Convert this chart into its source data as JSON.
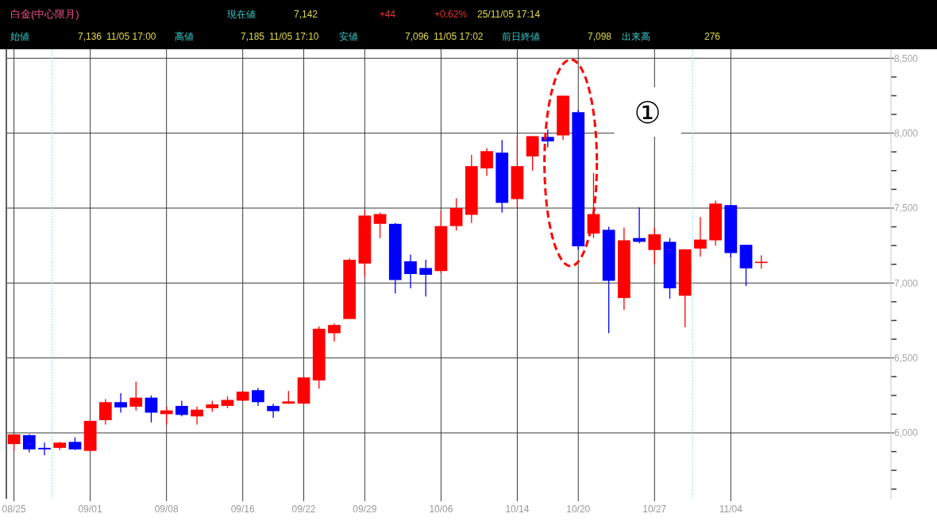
{
  "chart_data": {
    "type": "candlestick",
    "title": "白金(中心限月)",
    "annotations": [
      "現在値",
      "7,142",
      "+44",
      "+0.62%",
      "25/11/05 17:14",
      "始値",
      "7,136",
      "11/05 17:00",
      "高値",
      "7,185",
      "11/05 17:10",
      "安値",
      "7,096",
      "11/05 17:02",
      "前日終値",
      "7,098",
      "出来高",
      "276",
      "①"
    ],
    "categories": [
      "08/25",
      null,
      null,
      null,
      null,
      "09/01",
      null,
      null,
      null,
      null,
      "09/08",
      null,
      null,
      null,
      null,
      "09/16",
      null,
      null,
      null,
      "09/22",
      null,
      null,
      null,
      "09/29",
      null,
      null,
      null,
      null,
      "10/06",
      null,
      null,
      null,
      null,
      "10/14",
      null,
      null,
      null,
      "10/20",
      null,
      null,
      null,
      null,
      "10/27",
      null,
      null,
      null,
      null,
      "11/04",
      null,
      null,
      null,
      null,
      null,
      null,
      null,
      null,
      null,
      null
    ],
    "ohlc": [
      [
        5925,
        5990,
        5880,
        5990
      ],
      [
        5985,
        5990,
        5870,
        5890
      ],
      [
        5900,
        5935,
        5850,
        5890
      ],
      [
        5900,
        5940,
        5885,
        5935
      ],
      [
        5940,
        5970,
        5885,
        5890
      ],
      [
        5880,
        6080,
        5875,
        6080
      ],
      [
        6085,
        6225,
        6055,
        6205
      ],
      [
        6205,
        6265,
        6135,
        6170
      ],
      [
        6175,
        6340,
        6150,
        6235
      ],
      [
        6235,
        6250,
        6070,
        6135
      ],
      [
        6125,
        6175,
        6055,
        6150
      ],
      [
        6180,
        6215,
        6110,
        6120
      ],
      [
        6110,
        6175,
        6055,
        6155
      ],
      [
        6165,
        6215,
        6140,
        6190
      ],
      [
        6180,
        6245,
        6165,
        6220
      ],
      [
        6215,
        6280,
        6215,
        6275
      ],
      [
        6285,
        6300,
        6180,
        6205
      ],
      [
        6180,
        6195,
        6100,
        6145
      ],
      [
        6195,
        6280,
        6195,
        6210
      ],
      [
        6195,
        6375,
        6195,
        6370
      ],
      [
        6350,
        6710,
        6295,
        6695
      ],
      [
        6665,
        6730,
        6610,
        6720
      ],
      [
        6760,
        7165,
        6760,
        7155
      ],
      [
        7130,
        7490,
        7040,
        7450
      ],
      [
        7395,
        7470,
        7300,
        7460
      ],
      [
        7395,
        7400,
        6930,
        7020
      ],
      [
        7145,
        7190,
        6965,
        7060
      ],
      [
        7100,
        7155,
        6910,
        7055
      ],
      [
        7080,
        7485,
        7065,
        7380
      ],
      [
        7380,
        7565,
        7350,
        7500
      ],
      [
        7455,
        7855,
        7400,
        7780
      ],
      [
        7765,
        7900,
        7715,
        7880
      ],
      [
        7870,
        7955,
        7470,
        7535
      ],
      [
        7560,
        7980,
        7500,
        7780
      ],
      [
        7845,
        7980,
        7750,
        7980
      ],
      [
        7975,
        8025,
        7905,
        7945
      ],
      [
        7985,
        8250,
        7955,
        8250
      ],
      [
        8140,
        8155,
        7220,
        7245
      ],
      [
        7330,
        7735,
        7300,
        7460
      ],
      [
        7355,
        7375,
        6665,
        7015
      ],
      [
        6900,
        7370,
        6820,
        7285
      ],
      [
        7300,
        7505,
        7265,
        7275
      ],
      [
        7220,
        7370,
        7125,
        7325
      ],
      [
        7275,
        7300,
        6895,
        6965
      ],
      [
        6915,
        7225,
        6705,
        7225
      ],
      [
        7230,
        7440,
        7175,
        7290
      ],
      [
        7285,
        7550,
        7250,
        7530
      ],
      [
        7520,
        7520,
        7170,
        7200
      ],
      [
        7255,
        7255,
        6980,
        7098
      ],
      [
        7136,
        7185,
        7096,
        7142
      ],
      null,
      null,
      null,
      null,
      null,
      null,
      null,
      null
    ],
    "colors": [
      "#ff0000",
      "#0000ff",
      "#0000ff",
      "#ff0000",
      "#0000ff",
      "#ff0000",
      "#ff0000",
      "#0000ff",
      "#ff0000",
      "#0000ff",
      "#ff0000",
      "#0000ff",
      "#ff0000",
      "#ff0000",
      "#ff0000",
      "#ff0000",
      "#0000ff",
      "#0000ff",
      "#ff0000",
      "#ff0000",
      "#ff0000",
      "#ff0000",
      "#ff0000",
      "#ff0000",
      "#ff0000",
      "#0000ff",
      "#0000ff",
      "#0000ff",
      "#ff0000",
      "#ff0000",
      "#ff0000",
      "#ff0000",
      "#0000ff",
      "#ff0000",
      "#ff0000",
      "#0000ff",
      "#ff0000",
      "#0000ff",
      "#ff0000",
      "#0000ff",
      "#ff0000",
      "#0000ff",
      "#ff0000",
      "#0000ff",
      "#ff0000",
      "#ff0000",
      "#ff0000",
      "#0000ff",
      "#0000ff",
      "#ff0000",
      null,
      null,
      null,
      null,
      null,
      null,
      null,
      null
    ],
    "ylim": [
      5560,
      8560
    ],
    "yticks": [
      {
        "value": 5625,
        "label": null
      },
      {
        "value": 5750,
        "label": null
      },
      {
        "value": 5875,
        "label": null
      },
      {
        "value": 6000,
        "label": "6,000"
      },
      {
        "value": 6125,
        "label": null
      },
      {
        "value": 6250,
        "label": null
      },
      {
        "value": 6375,
        "label": null
      },
      {
        "value": 6500,
        "label": "6,500"
      },
      {
        "value": 6625,
        "label": null
      },
      {
        "value": 6750,
        "label": null
      },
      {
        "value": 6875,
        "label": null
      },
      {
        "value": 7000,
        "label": "7,000"
      },
      {
        "value": 7125,
        "label": null
      },
      {
        "value": 7250,
        "label": null
      },
      {
        "value": 7375,
        "label": null
      },
      {
        "value": 7500,
        "label": "7,500"
      },
      {
        "value": 7625,
        "label": null
      },
      {
        "value": 7750,
        "label": null
      },
      {
        "value": 7875,
        "label": null
      },
      {
        "value": 8000,
        "label": "8,000"
      },
      {
        "value": 8125,
        "label": null
      },
      {
        "value": 8250,
        "label": null
      },
      {
        "value": 8375,
        "label": null
      },
      {
        "value": 8500,
        "label": "8,500"
      }
    ],
    "grid": true
  }
}
